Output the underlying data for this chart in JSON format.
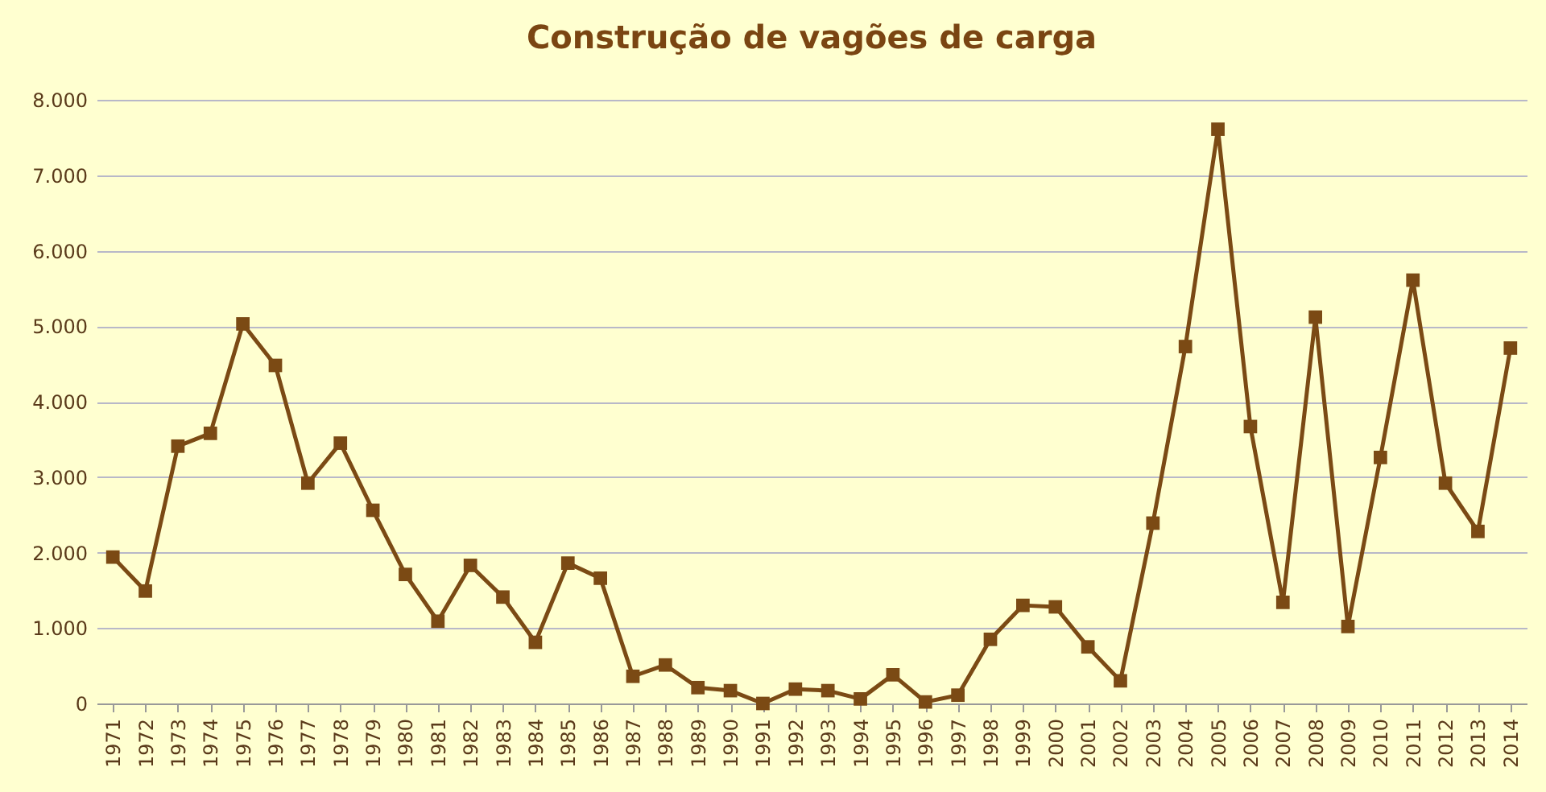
{
  "chart_data": {
    "type": "line",
    "title": "Construção de vagões de carga",
    "categories": [
      "1971",
      "1972",
      "1973",
      "1974",
      "1975",
      "1976",
      "1977",
      "1978",
      "1979",
      "1980",
      "1981",
      "1982",
      "1983",
      "1984",
      "1985",
      "1986",
      "1987",
      "1988",
      "1989",
      "1990",
      "1991",
      "1992",
      "1993",
      "1994",
      "1995",
      "1996",
      "1997",
      "1998",
      "1999",
      "2000",
      "2001",
      "2002",
      "2003",
      "2004",
      "2005",
      "2006",
      "2007",
      "2008",
      "2009",
      "2010",
      "2011",
      "2012",
      "2013",
      "2014"
    ],
    "series": [
      {
        "color": "#7b4a14",
        "values": [
          1940,
          1490,
          3410,
          3580,
          5030,
          4480,
          2920,
          3450,
          2560,
          1710,
          1090,
          1830,
          1410,
          810,
          1860,
          1660,
          360,
          510,
          210,
          170,
          0,
          190,
          170,
          60,
          380,
          20,
          110,
          850,
          1300,
          1280,
          750,
          300,
          2390,
          4730,
          7610,
          3670,
          1340,
          5120,
          1020,
          3260,
          5610,
          2920,
          2280,
          4710
        ]
      }
    ],
    "ylim": [
      0,
      8000
    ],
    "yticks": [
      {
        "value": 0,
        "label": "0"
      },
      {
        "value": 1000,
        "label": "1.000"
      },
      {
        "value": 2000,
        "label": "2.000"
      },
      {
        "value": 3000,
        "label": "3.000"
      },
      {
        "value": 4000,
        "label": "4.000"
      },
      {
        "value": 5000,
        "label": "5.000"
      },
      {
        "value": 6000,
        "label": "6.000"
      },
      {
        "value": 7000,
        "label": "7.000"
      },
      {
        "value": 8000,
        "label": "8.000"
      }
    ],
    "grid": "y",
    "marker": "square",
    "line_style": "solid"
  }
}
